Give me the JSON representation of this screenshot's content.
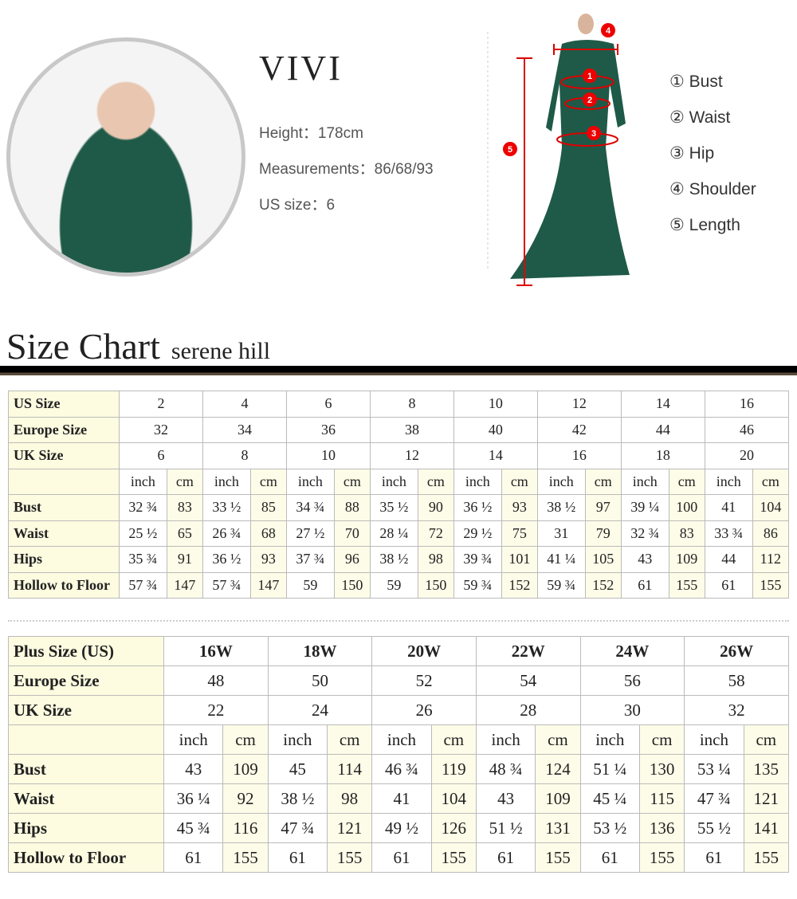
{
  "model": {
    "name": "VIVI",
    "height": "Height：178cm",
    "measurements": "Measurements：86/68/93",
    "us_size": "US size：6"
  },
  "legend": [
    "① Bust",
    "② Waist",
    "③ Hip",
    "④ Shoulder",
    "⑤ Length"
  ],
  "figure_markers": [
    "1",
    "2",
    "3",
    "4",
    "5"
  ],
  "heading": {
    "title": "Size Chart",
    "brand": "serene hill"
  },
  "table1": {
    "header_rows": [
      {
        "label": "US Size",
        "values": [
          "2",
          "4",
          "6",
          "8",
          "10",
          "12",
          "14",
          "16"
        ]
      },
      {
        "label": "Europe Size",
        "values": [
          "32",
          "34",
          "36",
          "38",
          "40",
          "42",
          "44",
          "46"
        ]
      },
      {
        "label": "UK Size",
        "values": [
          "6",
          "8",
          "10",
          "12",
          "14",
          "16",
          "18",
          "20"
        ]
      }
    ],
    "units": [
      "inch",
      "cm"
    ],
    "rows": [
      {
        "label": "Bust",
        "values": [
          "32 ¾",
          "83",
          "33 ½",
          "85",
          "34 ¾",
          "88",
          "35 ½",
          "90",
          "36 ½",
          "93",
          "38 ½",
          "97",
          "39 ¼",
          "100",
          "41",
          "104"
        ]
      },
      {
        "label": "Waist",
        "values": [
          "25 ½",
          "65",
          "26 ¾",
          "68",
          "27 ½",
          "70",
          "28 ¼",
          "72",
          "29 ½",
          "75",
          "31",
          "79",
          "32 ¾",
          "83",
          "33 ¾",
          "86"
        ]
      },
      {
        "label": "Hips",
        "values": [
          "35 ¾",
          "91",
          "36 ½",
          "93",
          "37 ¾",
          "96",
          "38 ½",
          "98",
          "39 ¾",
          "101",
          "41 ¼",
          "105",
          "43",
          "109",
          "44",
          "112"
        ]
      },
      {
        "label": "Hollow to Floor",
        "values": [
          "57 ¾",
          "147",
          "57 ¾",
          "147",
          "59",
          "150",
          "59",
          "150",
          "59 ¾",
          "152",
          "59 ¾",
          "152",
          "61",
          "155",
          "61",
          "155"
        ]
      }
    ]
  },
  "table2": {
    "header_rows": [
      {
        "label": "Plus Size (US)",
        "values": [
          "16W",
          "18W",
          "20W",
          "22W",
          "24W",
          "26W"
        ]
      },
      {
        "label": "Europe Size",
        "values": [
          "48",
          "50",
          "52",
          "54",
          "56",
          "58"
        ]
      },
      {
        "label": "UK Size",
        "values": [
          "22",
          "24",
          "26",
          "28",
          "30",
          "32"
        ]
      }
    ],
    "units": [
      "inch",
      "cm"
    ],
    "rows": [
      {
        "label": "Bust",
        "values": [
          "43",
          "109",
          "45",
          "114",
          "46 ¾",
          "119",
          "48 ¾",
          "124",
          "51 ¼",
          "130",
          "53 ¼",
          "135"
        ]
      },
      {
        "label": "Waist",
        "values": [
          "36 ¼",
          "92",
          "38 ½",
          "98",
          "41",
          "104",
          "43",
          "109",
          "45 ¼",
          "115",
          "47 ¾",
          "121"
        ]
      },
      {
        "label": "Hips",
        "values": [
          "45 ¾",
          "116",
          "47 ¾",
          "121",
          "49 ½",
          "126",
          "51 ½",
          "131",
          "53 ½",
          "136",
          "55 ½",
          "141"
        ]
      },
      {
        "label": "Hollow to Floor",
        "values": [
          "61",
          "155",
          "61",
          "155",
          "61",
          "155",
          "61",
          "155",
          "61",
          "155",
          "61",
          "155"
        ]
      }
    ]
  }
}
